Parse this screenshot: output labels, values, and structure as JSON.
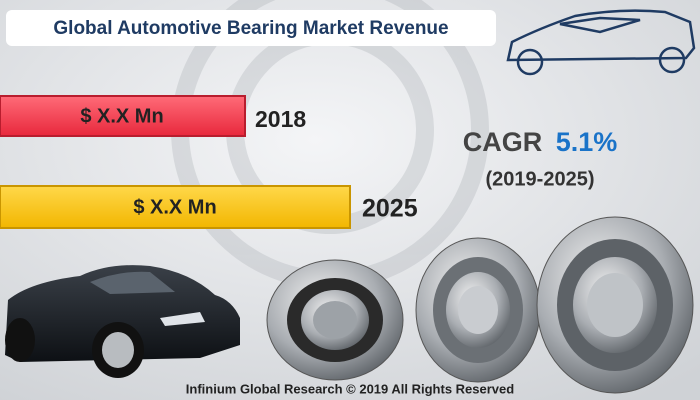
{
  "header": {
    "title": "Global Automotive Bearing Market Revenue"
  },
  "bars": [
    {
      "label": "$ X.X Mn",
      "year": "2018"
    },
    {
      "label": "$ X.X Mn",
      "year": "2025"
    }
  ],
  "cagr": {
    "label": "CAGR",
    "value": "5.1%",
    "period": "(2019-2025)"
  },
  "footer": {
    "text": "Infinium Global Research © 2019 All Rights Reserved"
  }
}
